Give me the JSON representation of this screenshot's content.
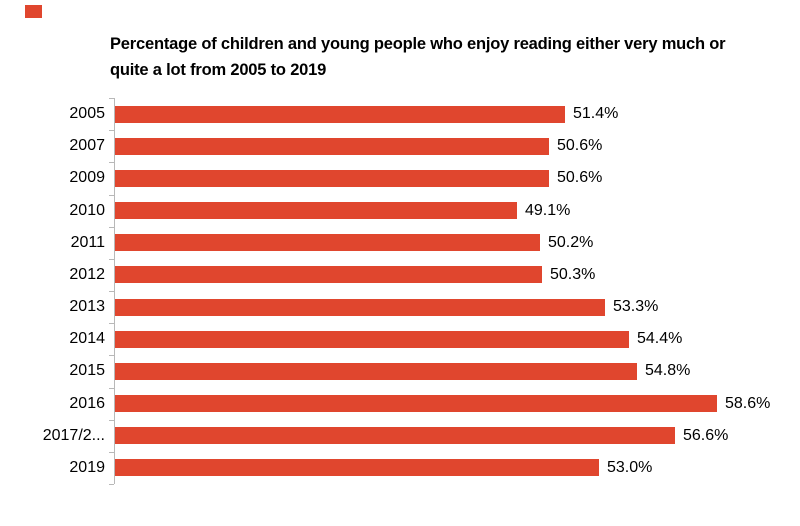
{
  "artifact_marker": {
    "color": "#e0462e"
  },
  "chart_data": {
    "type": "bar",
    "orientation": "horizontal",
    "title": "Percentage of children and young people who enjoy reading either very much or quite a lot from 2005 to 2019",
    "title_lines": [
      "Percentage of children and young people who enjoy reading either very much or",
      "quite a lot from 2005 to 2019"
    ],
    "categories": [
      "2005",
      "2007",
      "2009",
      "2010",
      "2011",
      "2012",
      "2013",
      "2014",
      "2015",
      "2016",
      "2017/2...",
      "2019"
    ],
    "values": [
      51.4,
      50.6,
      50.6,
      49.1,
      50.2,
      50.3,
      53.3,
      54.4,
      54.8,
      58.6,
      56.6,
      53.0
    ],
    "data_labels": [
      "51.4%",
      "50.6%",
      "50.6%",
      "49.1%",
      "50.2%",
      "50.3%",
      "53.3%",
      "54.4%",
      "54.8%",
      "58.6%",
      "56.6%",
      "53.0%"
    ],
    "bar_color": "#e0462e",
    "axis_color": "#b8b8b8",
    "text_color": "#000000",
    "xlim_implied": [
      30,
      62
    ],
    "grid": false,
    "legend": false,
    "x_axis_labels_visible": false
  }
}
